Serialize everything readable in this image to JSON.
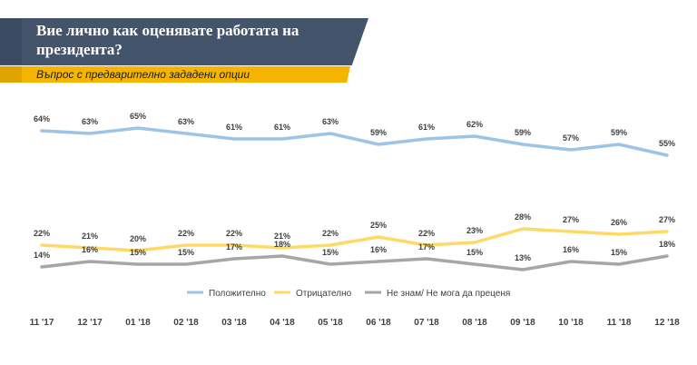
{
  "header": {
    "title": "Вие лично как оценявате работата на президента?",
    "subtitle": "Въпрос с предварително зададени опции"
  },
  "colors": {
    "positive": "#9dc3e6",
    "negative": "#ffd966",
    "unknown": "#a6a6a6",
    "header_bg": "#44546a",
    "subtitle_bg": "#f4b400"
  },
  "chart_data": {
    "type": "line",
    "title": "Вие лично как оценявате работата на президента?",
    "subtitle": "Въпрос с предварително зададени опции",
    "categories": [
      "11 '17",
      "12 '17",
      "01 '18",
      "02 '18",
      "03 '18",
      "04 '18",
      "05 '18",
      "06 '18",
      "07 '18",
      "08 '18",
      "09 '18",
      "10 '18",
      "11 '18",
      "12 '18"
    ],
    "series": [
      {
        "name": "Положително",
        "color": "#9dc3e6",
        "values": [
          64,
          63,
          65,
          63,
          61,
          61,
          63,
          59,
          61,
          62,
          59,
          57,
          59,
          55
        ]
      },
      {
        "name": "Отрицателно",
        "color": "#ffd966",
        "values": [
          22,
          21,
          20,
          22,
          22,
          21,
          22,
          25,
          22,
          23,
          28,
          27,
          26,
          27
        ]
      },
      {
        "name": "Не знам/ Не мога да преценя",
        "color": "#a6a6a6",
        "values": [
          14,
          16,
          15,
          15,
          17,
          18,
          15,
          16,
          17,
          15,
          13,
          16,
          15,
          18
        ]
      }
    ],
    "value_suffix": "%",
    "xlabel": "",
    "ylabel": "",
    "grid": false,
    "legend_position": "bottom-center"
  }
}
